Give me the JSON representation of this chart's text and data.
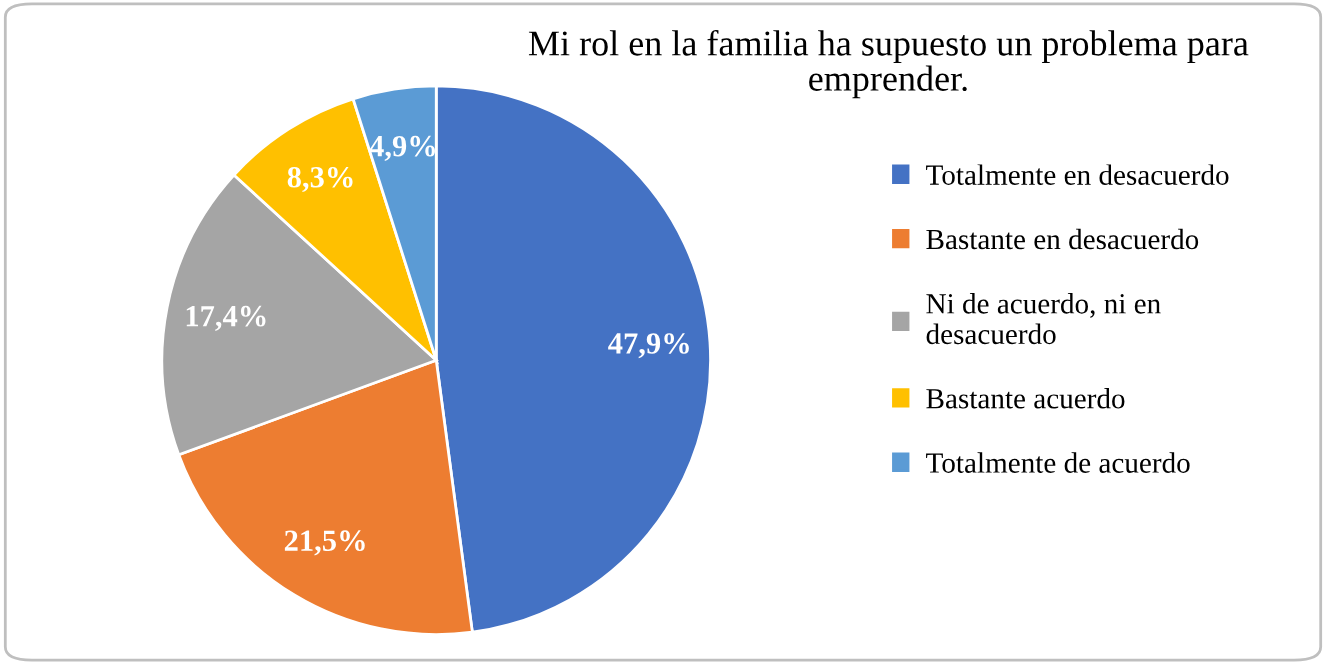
{
  "chart_data": {
    "type": "pie",
    "title": "Mi rol en la familia ha supuesto un problema para\nemprender.",
    "categories": [
      "Totalmente en desacuerdo",
      "Bastante en desacuerdo",
      "Ni de acuerdo, ni en\ndesacuerdo",
      "Bastante acuerdo",
      "Totalmente de acuerdo"
    ],
    "values": [
      47.9,
      21.5,
      17.4,
      8.3,
      4.9
    ],
    "colors": [
      "#4472c4",
      "#ed7d31",
      "#a5a5a5",
      "#ffc000",
      "#5b9bd5"
    ],
    "value_labels": [
      "47,9%",
      "21,5%",
      "17,4%",
      "8,3%",
      "4,9%"
    ],
    "legend": "right"
  }
}
